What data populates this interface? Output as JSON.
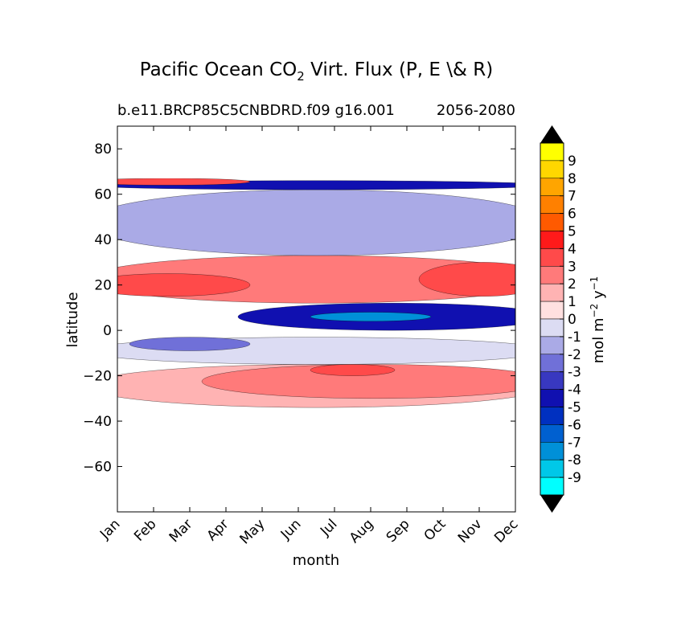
{
  "chart_data": {
    "type": "heatmap",
    "title_main": "Pacific Ocean CO",
    "title_sub": "2",
    "title_rest": " Virt. Flux (P, E \\& R)",
    "subtitle_left": "b.e11.BRCP85C5CNBDRD.f09 g16.001",
    "subtitle_right": "2056-2080",
    "xlabel": "month",
    "ylabel": "latitude",
    "months": [
      "Jan",
      "Feb",
      "Mar",
      "Apr",
      "May",
      "Jun",
      "Jul",
      "Aug",
      "Sep",
      "Oct",
      "Nov",
      "Dec"
    ],
    "yticks": [
      80,
      60,
      40,
      20,
      0,
      -20,
      -40,
      -60
    ],
    "yticklabels": [
      "80",
      "60",
      "40",
      "20",
      "0",
      "−20",
      "−40",
      "−60"
    ],
    "ylim": [
      -80,
      90
    ],
    "data_lat_range": [
      -34,
      67
    ],
    "colorbar": {
      "label_main": "mol m",
      "label_exp1": "−2",
      "label_mid": " y",
      "label_exp2": "−1",
      "levels": [
        "9",
        "8",
        "7",
        "6",
        "5",
        "4",
        "3",
        "2",
        "1",
        "0",
        "-1",
        "-2",
        "-3",
        "-4",
        "-5",
        "-6",
        "-7",
        "-8",
        "-9"
      ],
      "colors": [
        "#ffff00",
        "#ffd700",
        "#ffa500",
        "#ff8000",
        "#ff5a00",
        "#ff1a1a",
        "#ff4a4a",
        "#ff7a7a",
        "#ffb3b3",
        "#ffe0e0",
        "#dcdcf3",
        "#aaaae6",
        "#7070d8",
        "#3838c0",
        "#1010b0",
        "#0030c0",
        "#0060d0",
        "#0090d8",
        "#00c8e8",
        "#00ffff"
      ]
    },
    "features": [
      {
        "name": "south-subtropical-positive-band",
        "value": 1,
        "lat": [
          -34,
          -15
        ],
        "months": "Jan-Dec"
      },
      {
        "name": "south-subtropical-core",
        "value": 2,
        "lat": [
          -30,
          -15
        ],
        "months": "Apr-Dec"
      },
      {
        "name": "south-subtropical-max",
        "value": 3,
        "lat": [
          -20,
          -15
        ],
        "months": "Jul-Aug"
      },
      {
        "name": "south-equatorial-negative",
        "value": -1,
        "lat": [
          -15,
          -3
        ],
        "months": "Jan-Dec"
      },
      {
        "name": "south-equatorial-core",
        "value": -3,
        "lat": [
          -9,
          -3
        ],
        "months": "Feb-Apr"
      },
      {
        "name": "equatorial-strong-uptake",
        "value": -5,
        "lat": [
          0,
          12
        ],
        "months": "May-Dec"
      },
      {
        "name": "equatorial-core",
        "value": -8,
        "lat": [
          4,
          8
        ],
        "months": "Jul-Sep"
      },
      {
        "name": "north-subtropical-positive",
        "value": 2,
        "lat": [
          12,
          33
        ],
        "months": "Jan-Dec"
      },
      {
        "name": "north-subtropical-max-west",
        "value": 3,
        "lat": [
          15,
          25
        ],
        "months": "Jan-Apr"
      },
      {
        "name": "north-subtropical-max-east",
        "value": 3,
        "lat": [
          15,
          30
        ],
        "months": "Oct-Dec"
      },
      {
        "name": "midlatitude-negative",
        "value": -2,
        "lat": [
          33,
          62
        ],
        "months": "Jan-Dec"
      },
      {
        "name": "subpolar-strong-uptake",
        "value": -5,
        "lat": [
          62,
          66
        ],
        "months": "Jan-Dec"
      },
      {
        "name": "polar-edge-positive",
        "value": 3,
        "lat": [
          64,
          67
        ],
        "months": "Jan-Apr"
      }
    ]
  }
}
